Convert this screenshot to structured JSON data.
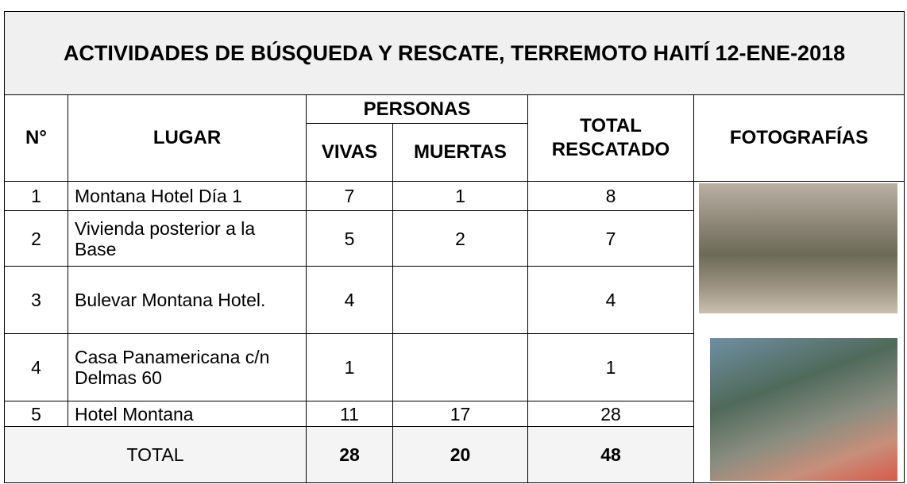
{
  "header": {
    "title": "ACTIVIDADES DE BÚSQUEDA Y RESCATE, TERREMOTO HAITÍ 12-ENE-2018"
  },
  "table": {
    "columns": {
      "number": "N°",
      "place": "LUGAR",
      "people": "PERSONAS",
      "alive": "VIVAS",
      "dead": "MUERTAS",
      "total": "TOTAL RESCATADO",
      "photos": "FOTOGRAFÍAS"
    },
    "rows": [
      [
        1,
        "Montana Hotel Día 1",
        7,
        1,
        8
      ],
      [
        2,
        "Vivienda posterior a la Base",
        5,
        2,
        7
      ],
      [
        3,
        "Bulevar Montana Hotel.",
        4,
        null,
        4
      ],
      [
        4,
        "Casa Panamericana c/n Delmas 60",
        1,
        null,
        1
      ],
      [
        5,
        "Hotel  Montana",
        11,
        17,
        28
      ]
    ],
    "total": {
      "label": "TOTAL",
      "alive": 28,
      "dead": 20,
      "total": 48
    }
  }
}
